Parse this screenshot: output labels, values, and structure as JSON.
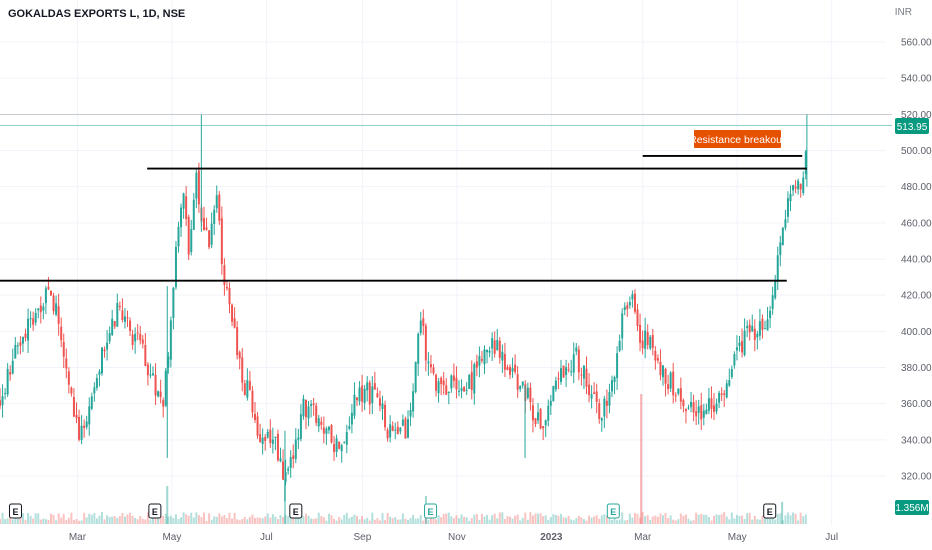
{
  "header": {
    "symbol_title": "GOKALDAS EXPORTS L, 1D, NSE",
    "currency": "INR"
  },
  "colors": {
    "up": "#26a69a",
    "down": "#ef5350",
    "price_label_bg": "#089981",
    "annotation_bg": "#e65100",
    "level_line": "#000000"
  },
  "chart_data": {
    "type": "candlestick",
    "title": "GOKALDAS EXPORTS L, 1D, NSE",
    "ylabel": "INR",
    "ylim": [
      306,
      568
    ],
    "yticks": [
      320,
      340,
      360,
      380,
      400,
      420,
      440,
      460,
      480,
      500,
      520,
      540,
      560
    ],
    "ytick_labels": [
      "320.00",
      "340.00",
      "360.00",
      "380.00",
      "400.00",
      "420.00",
      "440.00",
      "460.00",
      "480.00",
      "500.00",
      "520.00",
      "540.00",
      "560.00"
    ],
    "x_month_labels": [
      "Mar",
      "May",
      "Jul",
      "Sep",
      "Nov",
      "2023",
      "Mar",
      "May",
      "Jul"
    ],
    "last_price": "513.95",
    "last_price_value": 513.95,
    "volume_label": "1.356M",
    "annotation": "Resistance breakout",
    "horizontal_levels": [
      {
        "value": 428,
        "from": "2022-01-10",
        "to": "2023-06-02"
      },
      {
        "value": 490,
        "from": "2022-04-15",
        "to": "2023-06-15"
      },
      {
        "value": 497,
        "from": "2023-03-01",
        "to": "2023-06-12"
      }
    ],
    "earnings_markers": [
      "2022-01-20",
      "2022-04-20",
      "2022-07-20",
      "2022-10-15",
      "2023-02-10",
      "2023-05-22"
    ],
    "price_path": [
      [
        "2022-01-10",
        360
      ],
      [
        "2022-01-20",
        395
      ],
      [
        "2022-02-02",
        405
      ],
      [
        "2022-02-10",
        425
      ],
      [
        "2022-02-18",
        400
      ],
      [
        "2022-02-25",
        365
      ],
      [
        "2022-03-03",
        340
      ],
      [
        "2022-03-12",
        372
      ],
      [
        "2022-03-20",
        395
      ],
      [
        "2022-03-28",
        412
      ],
      [
        "2022-04-06",
        398
      ],
      [
        "2022-04-14",
        385
      ],
      [
        "2022-04-20",
        372
      ],
      [
        "2022-04-26",
        360
      ],
      [
        "2022-05-01",
        420
      ],
      [
        "2022-05-05",
        455
      ],
      [
        "2022-05-09",
        480
      ],
      [
        "2022-05-12",
        445
      ],
      [
        "2022-05-17",
        485
      ],
      [
        "2022-05-21",
        462
      ],
      [
        "2022-05-25",
        445
      ],
      [
        "2022-05-30",
        470
      ],
      [
        "2022-06-03",
        435
      ],
      [
        "2022-06-08",
        410
      ],
      [
        "2022-06-13",
        385
      ],
      [
        "2022-06-20",
        362
      ],
      [
        "2022-06-27",
        345
      ],
      [
        "2022-07-05",
        340
      ],
      [
        "2022-07-12",
        320
      ],
      [
        "2022-07-18",
        335
      ],
      [
        "2022-07-26",
        360
      ],
      [
        "2022-08-03",
        350
      ],
      [
        "2022-08-10",
        342
      ],
      [
        "2022-08-18",
        336
      ],
      [
        "2022-08-25",
        355
      ],
      [
        "2022-09-02",
        368
      ],
      [
        "2022-09-10",
        364
      ],
      [
        "2022-09-18",
        345
      ],
      [
        "2022-09-26",
        342
      ],
      [
        "2022-10-03",
        355
      ],
      [
        "2022-10-08",
        410
      ],
      [
        "2022-10-12",
        390
      ],
      [
        "2022-10-18",
        368
      ],
      [
        "2022-10-25",
        372
      ],
      [
        "2022-11-01",
        366
      ],
      [
        "2022-11-08",
        370
      ],
      [
        "2022-11-16",
        380
      ],
      [
        "2022-11-24",
        395
      ],
      [
        "2022-12-02",
        382
      ],
      [
        "2022-12-10",
        375
      ],
      [
        "2022-12-18",
        360
      ],
      [
        "2022-12-26",
        345
      ],
      [
        "2023-01-03",
        365
      ],
      [
        "2023-01-10",
        382
      ],
      [
        "2023-01-18",
        385
      ],
      [
        "2023-01-26",
        370
      ],
      [
        "2023-02-02",
        355
      ],
      [
        "2023-02-10",
        372
      ],
      [
        "2023-02-16",
        405
      ],
      [
        "2023-02-22",
        420
      ],
      [
        "2023-02-28",
        398
      ],
      [
        "2023-03-08",
        388
      ],
      [
        "2023-03-16",
        375
      ],
      [
        "2023-03-24",
        365
      ],
      [
        "2023-04-01",
        355
      ],
      [
        "2023-04-10",
        358
      ],
      [
        "2023-04-20",
        360
      ],
      [
        "2023-04-28",
        385
      ],
      [
        "2023-05-06",
        398
      ],
      [
        "2023-05-14",
        402
      ],
      [
        "2023-05-20",
        405
      ],
      [
        "2023-05-25",
        430
      ],
      [
        "2023-05-29",
        455
      ],
      [
        "2023-06-02",
        468
      ],
      [
        "2023-06-06",
        478
      ],
      [
        "2023-06-09",
        482
      ],
      [
        "2023-06-13",
        486
      ],
      [
        "2023-06-15",
        514
      ]
    ]
  }
}
